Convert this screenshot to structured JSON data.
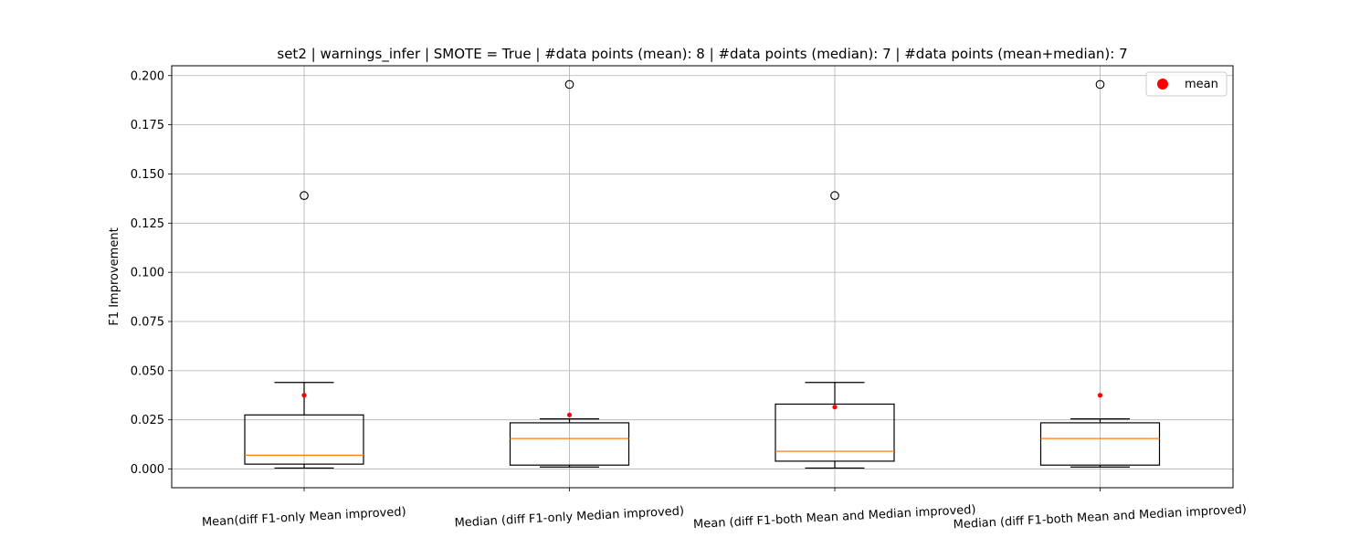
{
  "chart_data": {
    "type": "box",
    "title": "set2 | warnings_infer | SMOTE = True | #data points (mean): 8 | #data points (median): 7 | #data points (mean+median): 7",
    "ylabel": "F1 Improvement",
    "xlabel": "",
    "ylim": [
      -0.0095,
      0.205
    ],
    "yticks": [
      0.0,
      0.025,
      0.05,
      0.075,
      0.1,
      0.125,
      0.15,
      0.175,
      0.2
    ],
    "ytick_labels": [
      "0.000",
      "0.025",
      "0.050",
      "0.075",
      "0.100",
      "0.125",
      "0.150",
      "0.175",
      "0.200"
    ],
    "grid": true,
    "legend": {
      "placement": "upper right",
      "entries": [
        {
          "label": "mean",
          "color": "#ff0000"
        }
      ]
    },
    "categories": [
      "Mean(diff F1-only Mean improved)",
      "Median (diff F1-only Median improved)",
      "Mean (diff F1-both Mean and Median improved)",
      "Median (diff F1-both Mean and Median improved)"
    ],
    "boxes": [
      {
        "whisker_low": 0.0005,
        "q1": 0.0025,
        "median": 0.007,
        "q3": 0.0275,
        "whisker_high": 0.044,
        "mean": 0.0375,
        "outliers": [
          0.139
        ]
      },
      {
        "whisker_low": 0.001,
        "q1": 0.002,
        "median": 0.0155,
        "q3": 0.0235,
        "whisker_high": 0.0255,
        "mean": 0.0275,
        "outliers": [
          0.1955
        ]
      },
      {
        "whisker_low": 0.0005,
        "q1": 0.004,
        "median": 0.009,
        "q3": 0.033,
        "whisker_high": 0.044,
        "mean": 0.0315,
        "outliers": [
          0.139
        ]
      },
      {
        "whisker_low": 0.001,
        "q1": 0.002,
        "median": 0.0155,
        "q3": 0.0235,
        "whisker_high": 0.0255,
        "mean": 0.0375,
        "outliers": [
          0.1955
        ]
      }
    ],
    "colors": {
      "box": "#000000",
      "median": "#ff7f0e",
      "mean": "#ff0000",
      "grid": "#b0b0b0"
    }
  }
}
